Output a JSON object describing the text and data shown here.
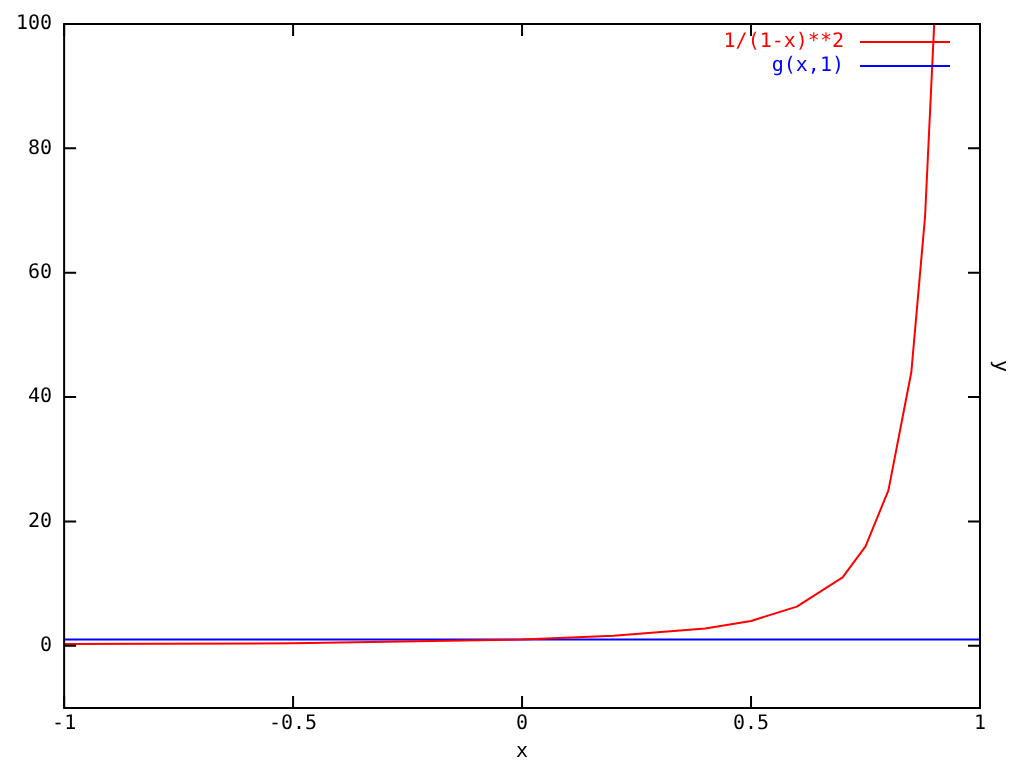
{
  "chart_data": {
    "type": "line",
    "xlabel": "x",
    "ylabel": "y",
    "xlim": [
      -1,
      1
    ],
    "ylim": [
      -10,
      100
    ],
    "xticks": [
      -1,
      -0.5,
      0,
      0.5,
      1
    ],
    "yticks": [
      0,
      20,
      40,
      60,
      80,
      100
    ],
    "grid": false,
    "legend": "top right",
    "marker": "none",
    "line_style": "solid",
    "series": [
      {
        "name": "1/(1-x)**2",
        "color": "#ff0000",
        "x": [
          -1,
          -0.5,
          0,
          0.2,
          0.4,
          0.5,
          0.6,
          0.7,
          0.75,
          0.8,
          0.85,
          0.88,
          0.9
        ],
        "values": [
          0.3,
          0.4,
          1,
          1.6,
          2.8,
          4,
          6.3,
          11,
          16,
          25,
          44,
          69,
          100
        ]
      },
      {
        "name": "g(x,1)",
        "color": "#0000ff",
        "x": [
          -1,
          1
        ],
        "values": [
          1,
          1
        ]
      }
    ]
  }
}
